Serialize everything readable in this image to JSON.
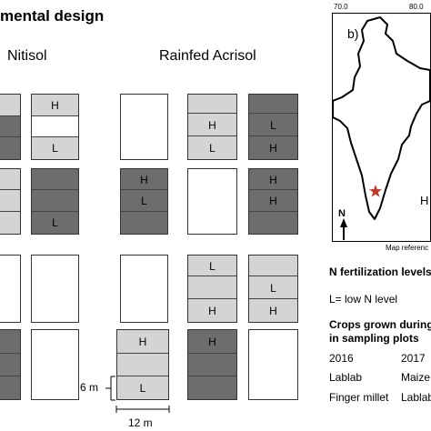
{
  "title": "mental design",
  "columns": {
    "left": "Nitisol",
    "right": "Rainfed Acrisol"
  },
  "plot_labels": {
    "high": "H",
    "low": "L"
  },
  "colors": {
    "light": "#d4d4d4",
    "dark": "#6d6d6d",
    "white": "#ffffff"
  },
  "scale": {
    "height": "6 m",
    "width": "12 m"
  },
  "map": {
    "label": "b)",
    "lon_ticks": [
      "70.0",
      "80.0"
    ],
    "north": "N",
    "reference": "Map referenc",
    "partial_label": "H"
  },
  "legend": {
    "n_levels_title": "N fertilization levels",
    "low_def": "L= low N level",
    "crops_title_1": "Crops grown during",
    "crops_title_2": "in sampling plots",
    "year_1": "2016",
    "year_2": "2017",
    "crop_2016_a": "Lablab",
    "crop_2017_a": "Maize",
    "crop_2016_b": "Finger millet",
    "crop_2017_b": "Lablab"
  }
}
